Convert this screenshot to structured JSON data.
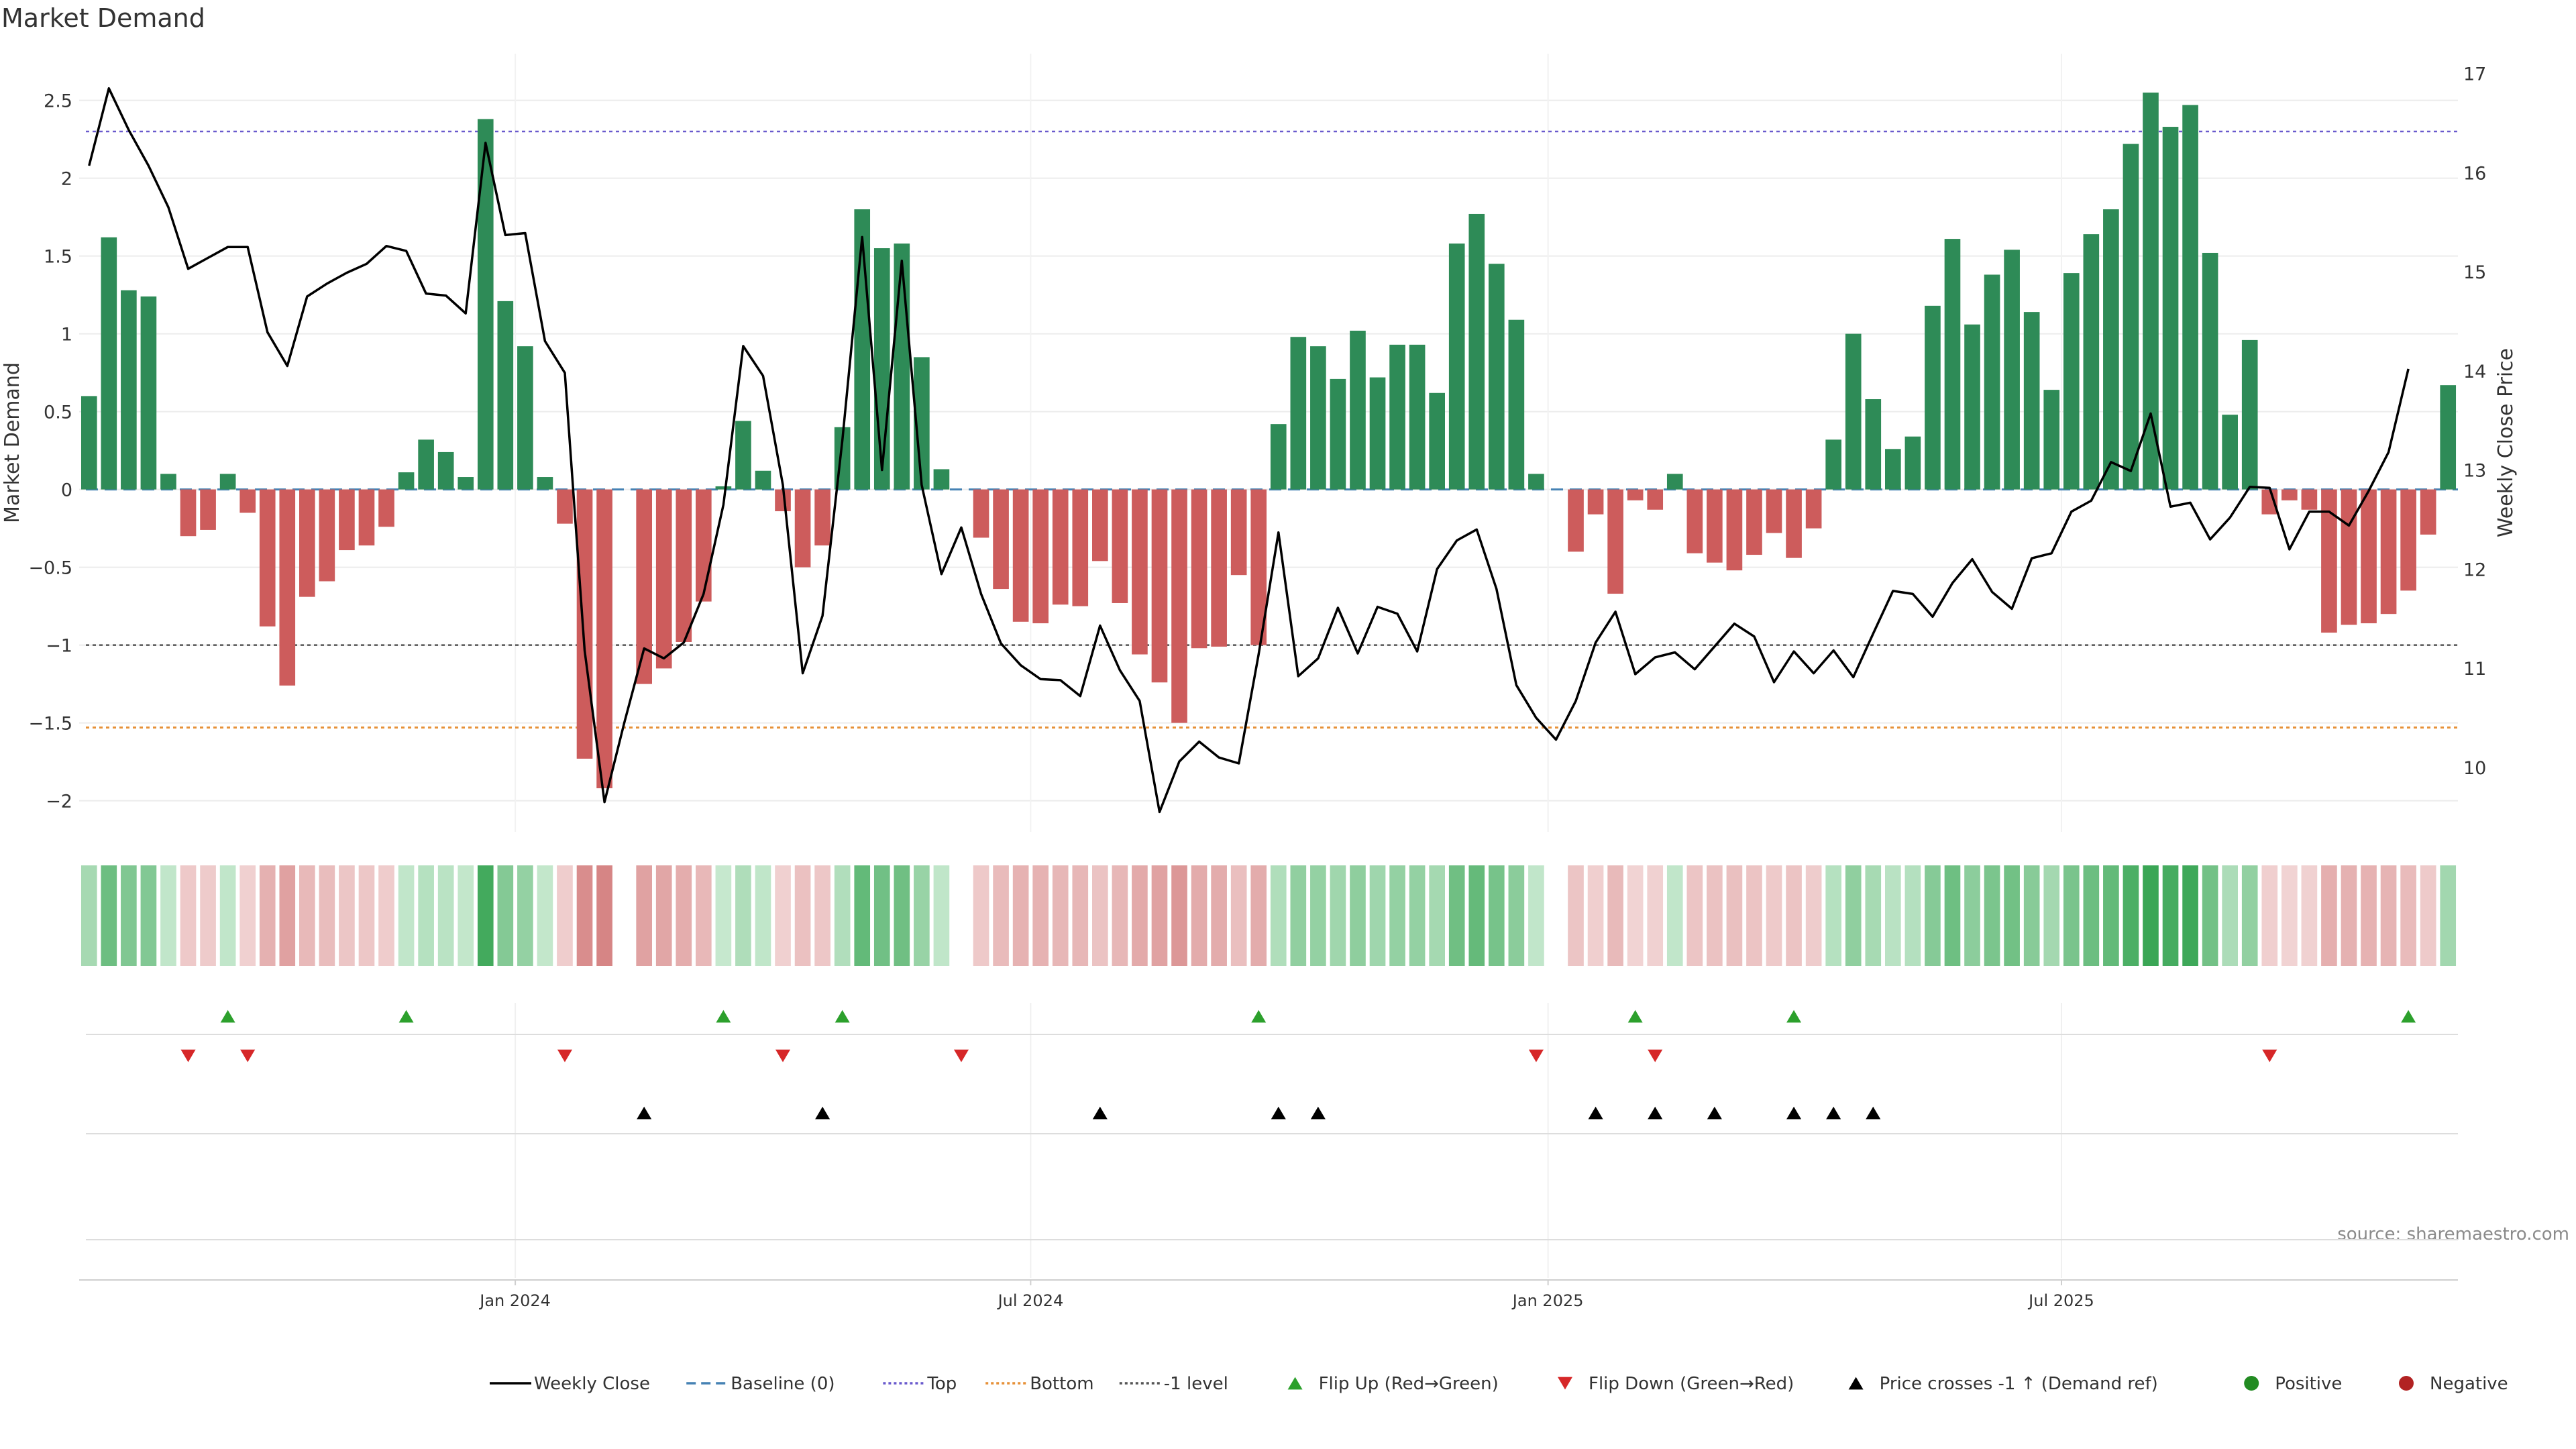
{
  "colors": {
    "positive": "#2e8b57",
    "negative": "#cd5c5c",
    "price_line": "#000000",
    "baseline": "#4682b4",
    "top_line": "#6a5acd",
    "bottom_line": "#e69138",
    "minus1_line": "#555555",
    "flip_up": "#2ca02c",
    "flip_down": "#d62728",
    "cross_marker": "#000000",
    "legend_positive": "#228b22",
    "legend_negative": "#b22222"
  },
  "chart_data": {
    "type": "bar",
    "title": "Market Demand",
    "ylabel": "Market Demand",
    "y2label": "Weekly Close Price",
    "ylim": [
      -2.2,
      2.8
    ],
    "y2lim": [
      9.35,
      17.2
    ],
    "yticks": [
      -2,
      -1.5,
      -1,
      -0.5,
      0,
      0.5,
      1,
      1.5,
      2,
      2.5
    ],
    "ytick_labels": [
      "−2",
      "−1.5",
      "−1",
      "−0.5",
      "0",
      "0.5",
      "1",
      "1.5",
      "2",
      "2.5"
    ],
    "y2ticks": [
      10,
      11,
      12,
      13,
      14,
      15,
      16,
      17
    ],
    "y2tick_labels": [
      "10",
      "11",
      "12",
      "13",
      "14",
      "15",
      "16",
      "17"
    ],
    "x_ticks": [
      {
        "label": "Jan 2024",
        "week": 21.5
      },
      {
        "label": "Jul 2024",
        "week": 47.5
      },
      {
        "label": "Jan 2025",
        "week": 73.6
      },
      {
        "label": "Jul 2025",
        "week": 99.5
      }
    ],
    "lines": {
      "top": 2.3,
      "bottom": -1.53,
      "minus1": -1.0,
      "baseline": 0
    },
    "demand": [
      0.6,
      1.62,
      1.28,
      1.24,
      0.1,
      -0.3,
      -0.26,
      0.1,
      -0.15,
      -0.88,
      -1.26,
      -0.69,
      -0.59,
      -0.39,
      -0.36,
      -0.24,
      0.11,
      0.32,
      0.24,
      0.08,
      2.38,
      1.21,
      0.92,
      0.08,
      -0.22,
      -1.73,
      -1.92,
      0,
      -1.25,
      -1.15,
      -0.98,
      -0.72,
      0.02,
      0.44,
      0.12,
      -0.14,
      -0.5,
      -0.36,
      0.4,
      1.8,
      1.55,
      1.58,
      0.85,
      0.13,
      0,
      -0.31,
      -0.64,
      -0.85,
      -0.86,
      -0.74,
      -0.75,
      -0.46,
      -0.73,
      -1.06,
      -1.24,
      -1.5,
      -1.02,
      -1.01,
      -0.55,
      -1.0,
      0.42,
      0.98,
      0.92,
      0.71,
      1.02,
      0.72,
      0.93,
      0.93,
      0.62,
      1.58,
      1.77,
      1.45,
      1.09,
      0.1,
      0,
      -0.4,
      -0.16,
      -0.67,
      -0.07,
      -0.13,
      0.1,
      -0.41,
      -0.47,
      -0.52,
      -0.42,
      -0.28,
      -0.44,
      -0.25,
      0.32,
      1.0,
      0.58,
      0.26,
      0.34,
      1.18,
      1.61,
      1.06,
      1.38,
      1.54,
      1.14,
      0.64,
      1.39,
      1.64,
      1.8,
      2.22,
      2.55,
      2.33,
      2.47,
      1.52,
      0.48,
      0.96,
      -0.16,
      -0.07,
      -0.13,
      -0.92,
      -0.87,
      -0.86,
      -0.8,
      -0.65,
      -0.29,
      0.67
    ],
    "price": [
      16.07,
      16.85,
      16.43,
      16.07,
      15.65,
      15.03,
      15.14,
      15.25,
      15.25,
      14.39,
      14.05,
      14.75,
      14.88,
      14.99,
      15.08,
      15.26,
      15.21,
      14.78,
      14.76,
      14.58,
      16.3,
      15.37,
      15.39,
      14.3,
      13.98,
      11.18,
      9.65,
      10.45,
      11.2,
      11.1,
      11.26,
      11.75,
      12.65,
      14.25,
      13.95,
      12.85,
      10.95,
      11.53,
      13.3,
      15.35,
      13.0,
      15.11,
      12.85,
      11.95,
      12.42,
      11.75,
      11.25,
      11.03,
      10.89,
      10.88,
      10.72,
      11.43,
      10.98,
      10.67,
      9.55,
      10.06,
      10.26,
      10.1,
      10.04,
      11.14,
      12.37,
      10.92,
      11.1,
      11.61,
      11.15,
      11.62,
      11.55,
      11.17,
      12.0,
      12.29,
      12.4,
      11.8,
      10.83,
      10.5,
      10.28,
      10.67,
      11.26,
      11.57,
      10.94,
      11.11,
      11.16,
      10.99,
      11.22,
      11.45,
      11.32,
      10.86,
      11.17,
      10.95,
      11.18,
      10.91,
      11.35,
      11.78,
      11.75,
      11.52,
      11.86,
      12.1,
      11.77,
      11.6,
      12.11,
      12.16,
      12.58,
      12.69,
      13.08,
      12.99,
      13.57,
      12.63,
      12.67,
      12.3,
      12.52,
      12.83,
      12.82,
      12.2,
      12.58,
      12.58,
      12.44,
      12.79,
      13.18,
      14.02
    ],
    "flip_up_weeks": [
      7,
      16,
      32,
      38,
      59,
      78,
      86,
      117
    ],
    "flip_down_weeks": [
      5,
      8,
      24,
      35,
      44,
      73,
      79,
      110
    ],
    "cross_weeks": [
      28,
      37,
      51,
      60,
      62,
      76,
      79,
      82,
      86,
      88,
      90
    ],
    "annotation": "source: sharemaestro.com",
    "legend": [
      {
        "label": "Weekly Close",
        "kind": "line",
        "color": "#000000",
        "dash": ""
      },
      {
        "label": "Baseline (0)",
        "kind": "line",
        "color": "#4682b4",
        "dash": "14 8"
      },
      {
        "label": "Top",
        "kind": "line",
        "color": "#6a5acd",
        "dash": "4 4"
      },
      {
        "label": "Bottom",
        "kind": "line",
        "color": "#e69138",
        "dash": "4 4"
      },
      {
        "label": "-1 level",
        "kind": "line",
        "color": "#555555",
        "dash": "4 4"
      },
      {
        "label": "Flip Up (Red→Green)",
        "kind": "tri-up",
        "color": "#2ca02c"
      },
      {
        "label": "Flip Down (Green→Red)",
        "kind": "tri-down",
        "color": "#d62728"
      },
      {
        "label": "Price crosses -1 ↑ (Demand ref)",
        "kind": "tri-up",
        "color": "#000000"
      },
      {
        "label": "Positive",
        "kind": "dot",
        "color": "#228b22"
      },
      {
        "label": "Negative",
        "kind": "dot",
        "color": "#b22222"
      }
    ]
  }
}
